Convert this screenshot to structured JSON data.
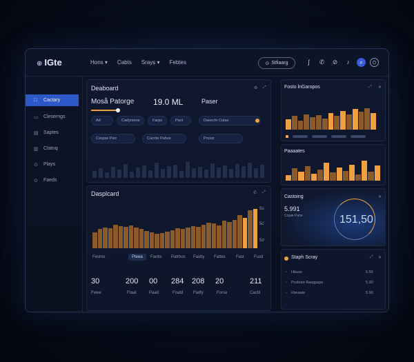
{
  "app": {
    "logo_mark": "⊕",
    "logo_text": "IGte"
  },
  "nav": [
    "Hons ▾",
    "Cabts",
    "Srays ▾",
    "Febtes"
  ],
  "top": {
    "pill_icon": "⊙",
    "pill_label": "Stfiaarg",
    "icons": [
      "ear-icon",
      "phone-icon",
      "globe-icon",
      "bell-icon",
      "search-icon",
      "power-icon"
    ]
  },
  "sidebar": [
    {
      "label": "Cactary",
      "icon": "□",
      "active": true
    },
    {
      "label": "Cleserngs",
      "icon": "▭"
    },
    {
      "label": "Saptes",
      "icon": "▤"
    },
    {
      "label": "Ctatnq",
      "icon": "▥"
    },
    {
      "label": "Plays",
      "icon": "⊙"
    },
    {
      "label": "Faeds",
      "icon": "⊙"
    }
  ],
  "dashboard": {
    "title": "Deaboard",
    "subtitle": "Moså Patorge",
    "value": "19.0 ML",
    "right_title": "Paser",
    "chips_row1": [
      "Ad",
      "Cadyrsone",
      "Farps",
      "Pact"
    ],
    "chip_right": "Dasechr Cutas",
    "chips_row2": [
      "Cxxpse Parr",
      "Cacnte Pahes",
      "Prssor"
    ]
  },
  "displaced": {
    "title": "Dasplcard",
    "axis": [
      "5ú",
      "5ć",
      "5ò"
    ],
    "bars": [
      20,
      24,
      26,
      25,
      30,
      28,
      27,
      29,
      26,
      24,
      22,
      20,
      18,
      19,
      21,
      23,
      25,
      24,
      26,
      28,
      27,
      30,
      32,
      31,
      29,
      35,
      33,
      36,
      42,
      38,
      48,
      50
    ],
    "highlight_indices": [
      29,
      31
    ],
    "tabs": [
      "Festno",
      "Pteea",
      "Fanbs",
      "Patrbos",
      "Fastty",
      "Fattes",
      "Fast",
      "Fusd"
    ],
    "stats": [
      {
        "value": "30",
        "label": "Fwee"
      },
      {
        "value": "200",
        "label": "Ftaat"
      },
      {
        "value": "00",
        "label": "Paad"
      },
      {
        "value": "284",
        "label": "Fnatd"
      },
      {
        "value": "208",
        "label": "Flatfy"
      },
      {
        "value": "20",
        "label": "Forse"
      },
      {
        "value": "211",
        "label": "Cactit"
      }
    ]
  },
  "right1": {
    "title": "Fosto lnGaropos",
    "bars": [
      14,
      18,
      12,
      20,
      16,
      19,
      15,
      22,
      18,
      25,
      20,
      27,
      24,
      28,
      22
    ],
    "highlight_indices": [
      0,
      7,
      9,
      11,
      14
    ],
    "chips": [
      "",
      "",
      "",
      ""
    ]
  },
  "right2": {
    "title": "Paaaates",
    "bars": [
      6,
      14,
      10,
      16,
      8,
      12,
      20,
      9,
      15,
      11,
      18,
      7,
      22,
      10,
      17
    ]
  },
  "gauge": {
    "title": "Castoing",
    "small_value": "5.991",
    "small_label": "Copæ Pane",
    "value": "151,50"
  },
  "list": {
    "title": "Staph Scray",
    "items": [
      {
        "label": "Hbuse",
        "value": "5.50"
      },
      {
        "label": "Pcsbute Rasgpape",
        "value": "5.90"
      },
      {
        "label": "Fbeaate",
        "value": "5.90"
      }
    ]
  },
  "colors": {
    "accent": "#f0a040",
    "bar_dark": "#8a5a2a",
    "active_nav": "#2d58c8"
  }
}
